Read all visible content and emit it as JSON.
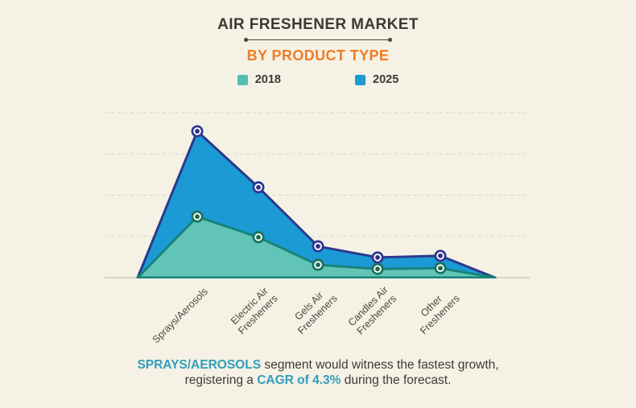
{
  "page": {
    "background": "#F5F1E5"
  },
  "header": {
    "title": "AIR FRESHENER MARKET",
    "title_color": "#3B3A33",
    "subtitle": "BY PRODUCT TYPE",
    "subtitle_color": "#F07C23"
  },
  "legend": [
    {
      "label": "2018",
      "color": "#53BEB1"
    },
    {
      "label": "2025",
      "color": "#1B9AD5"
    }
  ],
  "chart_data": {
    "type": "area",
    "title": "AIR FRESHENER MARKET",
    "subtitle": "BY PRODUCT TYPE",
    "categories": [
      "Sprays/Aerosols",
      "Electric Air Fresheners",
      "Gels Air Fresheners",
      "Candles Air Fresheners",
      "Other Fresheners"
    ],
    "categories_lines": [
      [
        "Sprays/Aerosols"
      ],
      [
        "Electric Air",
        "Fresheners"
      ],
      [
        "Gels Air",
        "Fresheners"
      ],
      [
        "Candles Air",
        "Fresheners"
      ],
      [
        "Other",
        "Fresheners"
      ]
    ],
    "series": [
      {
        "name": "2025",
        "values": [
          3.55,
          2.19,
          0.76,
          0.49,
          0.53
        ],
        "fill": "#1B9AD5",
        "stroke": "#2B3A8C",
        "marker_ring": "#2C3792",
        "marker_dot": "#342B87"
      },
      {
        "name": "2018",
        "values": [
          1.48,
          0.98,
          0.31,
          0.21,
          0.23
        ],
        "fill": "#62C4B6",
        "stroke": "#17837B",
        "marker_ring": "#1A7159",
        "marker_dot": "#166A50"
      }
    ],
    "xlabel": "",
    "ylabel": "",
    "ylim": [
      0,
      4
    ],
    "y_axis_labels_visible": false,
    "grid": "horizontal-dashed",
    "grid_color": "#DCD7C8",
    "axis_color": "#B9B5A9",
    "legend_position": "top-center",
    "units_note": "No y-axis scale shown in source; values estimated in gridline units (baseline 0, top gridline 4)"
  },
  "caption": {
    "highlight1": "SPRAYS/AEROSOLS",
    "text1": " segment would witness the fastest growth,",
    "text2": "registering a ",
    "highlight2": "CAGR of 4.3%",
    "text3": " during the forecast.",
    "highlight_color": "#2F9FBC"
  }
}
